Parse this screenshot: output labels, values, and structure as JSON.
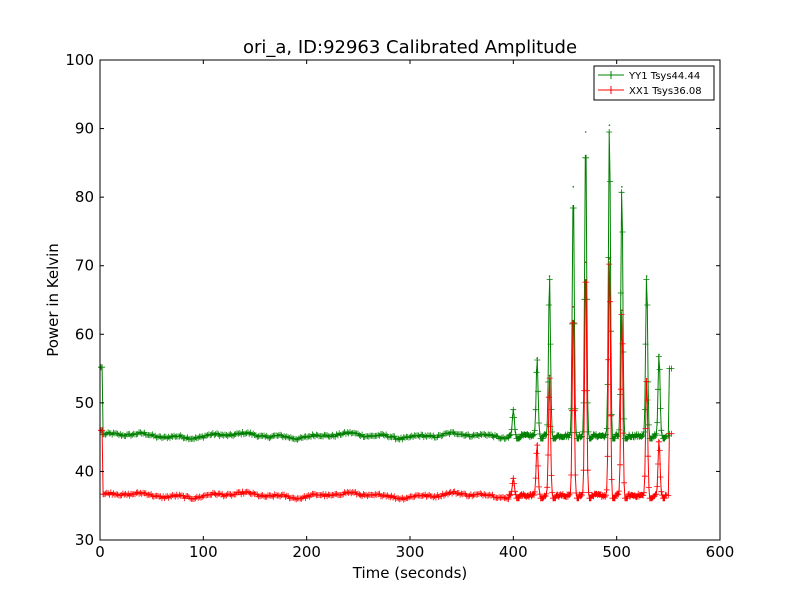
{
  "chart_data": {
    "type": "line",
    "title": "ori_a, ID:92963 Calibrated Amplitude",
    "xlabel": "Time (seconds)",
    "ylabel": "Power in Kelvin",
    "xlim": [
      0,
      600
    ],
    "ylim": [
      30,
      100
    ],
    "xticks": [
      "0",
      "100",
      "200",
      "300",
      "400",
      "500",
      "600"
    ],
    "yticks": [
      "30",
      "40",
      "50",
      "60",
      "70",
      "80",
      "90",
      "100"
    ],
    "grid": false,
    "legend_position": "top-right",
    "markers": "plus",
    "series": [
      {
        "name": "YY1 Tsys44.44",
        "color": "#008000",
        "baseline": 45.2,
        "start_value": 55.2,
        "end_value": 55.0,
        "peaks": [
          {
            "x": 400,
            "y": 49
          },
          {
            "x": 423,
            "y": 56.5
          },
          {
            "x": 435,
            "y": 68.5
          },
          {
            "x": 458,
            "y": 81.5
          },
          {
            "x": 470,
            "y": 89.5
          },
          {
            "x": 493,
            "y": 90.5
          },
          {
            "x": 505,
            "y": 81.5
          },
          {
            "x": 529,
            "y": 68.5
          },
          {
            "x": 541,
            "y": 57
          }
        ]
      },
      {
        "name": "XX1 Tsys36.08",
        "color": "#ff0000",
        "baseline": 36.5,
        "start_value": 46,
        "end_value": 45.5,
        "peaks": [
          {
            "x": 400,
            "y": 39
          },
          {
            "x": 423,
            "y": 44
          },
          {
            "x": 435,
            "y": 54
          },
          {
            "x": 458,
            "y": 64
          },
          {
            "x": 470,
            "y": 70.5
          },
          {
            "x": 493,
            "y": 71
          },
          {
            "x": 505,
            "y": 63.5
          },
          {
            "x": 529,
            "y": 53.5
          },
          {
            "x": 541,
            "y": 44.5
          }
        ]
      }
    ]
  }
}
